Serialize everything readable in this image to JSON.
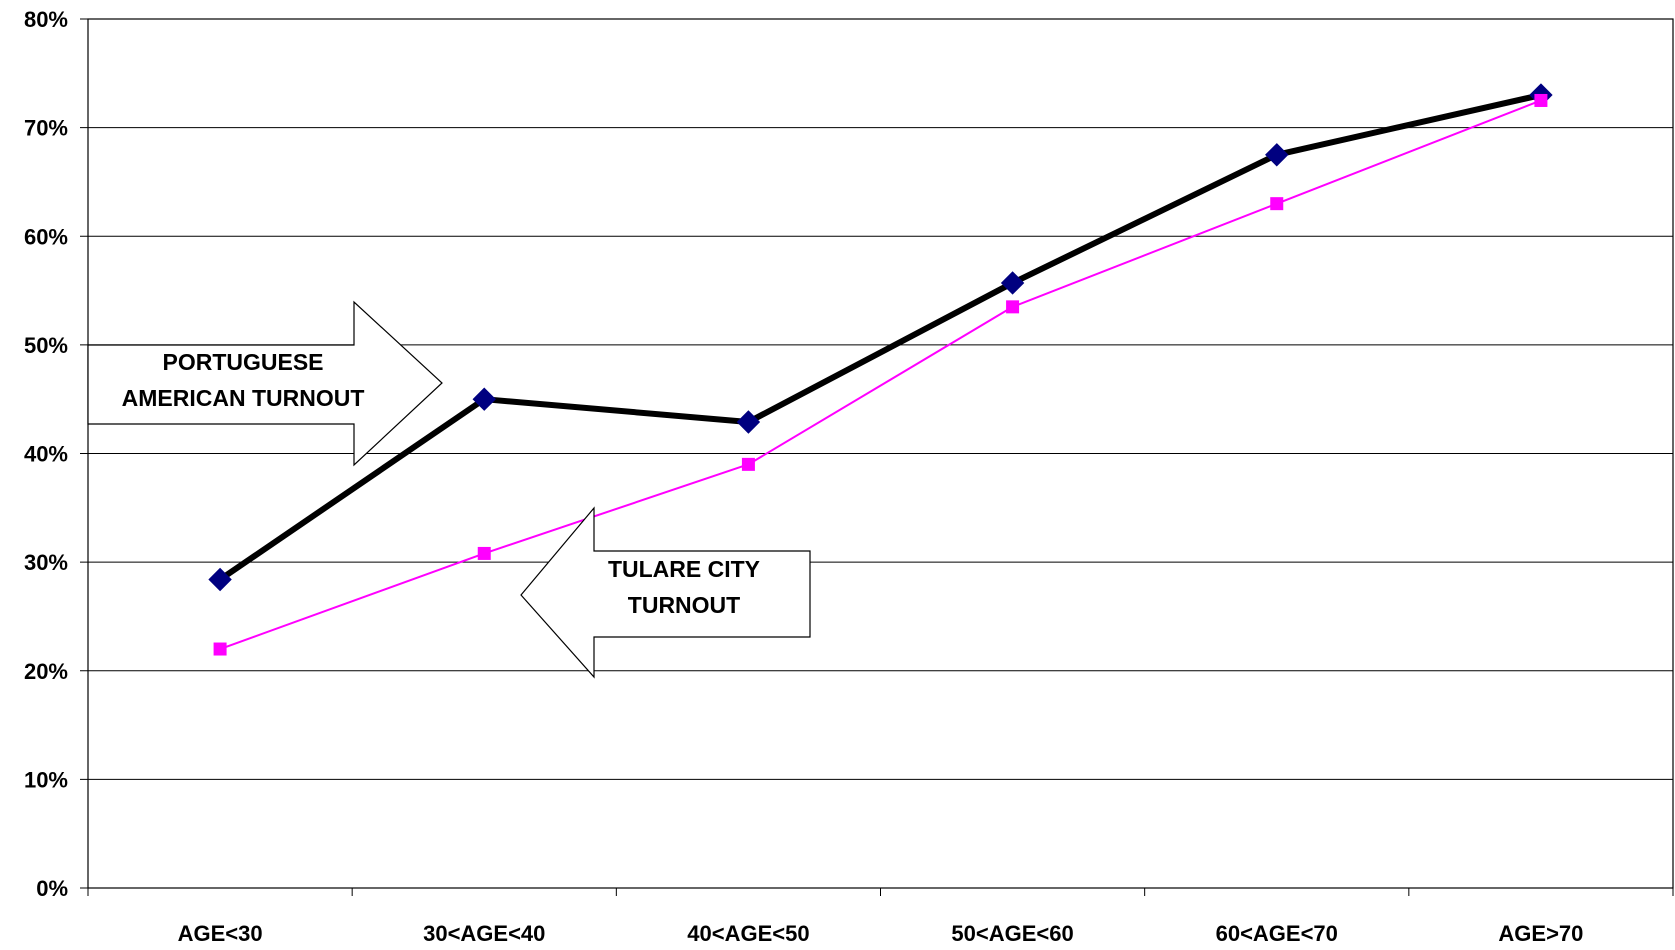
{
  "chart_data": {
    "type": "line",
    "categories": [
      "AGE<30",
      "30<AGE<40",
      "40<AGE<50",
      "50<AGE<60",
      "60<AGE<70",
      "AGE>70"
    ],
    "ylim": [
      0,
      80
    ],
    "yticks": [
      0,
      10,
      20,
      30,
      40,
      50,
      60,
      70,
      80
    ],
    "ytick_labels": [
      "0%",
      "10%",
      "20%",
      "30%",
      "40%",
      "50%",
      "60%",
      "70%",
      "80%"
    ],
    "grid": true,
    "series": [
      {
        "key": "portuguese",
        "values": [
          28.4,
          45.0,
          42.9,
          55.7,
          67.5,
          73.0
        ],
        "color": "#000000",
        "marker_color": "#000080",
        "marker": "diamond"
      },
      {
        "key": "tulare",
        "values": [
          22.0,
          30.8,
          39.0,
          53.5,
          63.0,
          72.5
        ],
        "color": "#ff00ff",
        "marker_color": "#ff00ff",
        "marker": "square"
      }
    ],
    "annotations": {
      "portuguese_line1": "PORTUGUESE",
      "portuguese_line2": "AMERICAN TURNOUT",
      "tulare_line1": "TULARE CITY",
      "tulare_line2": "TURNOUT"
    }
  }
}
